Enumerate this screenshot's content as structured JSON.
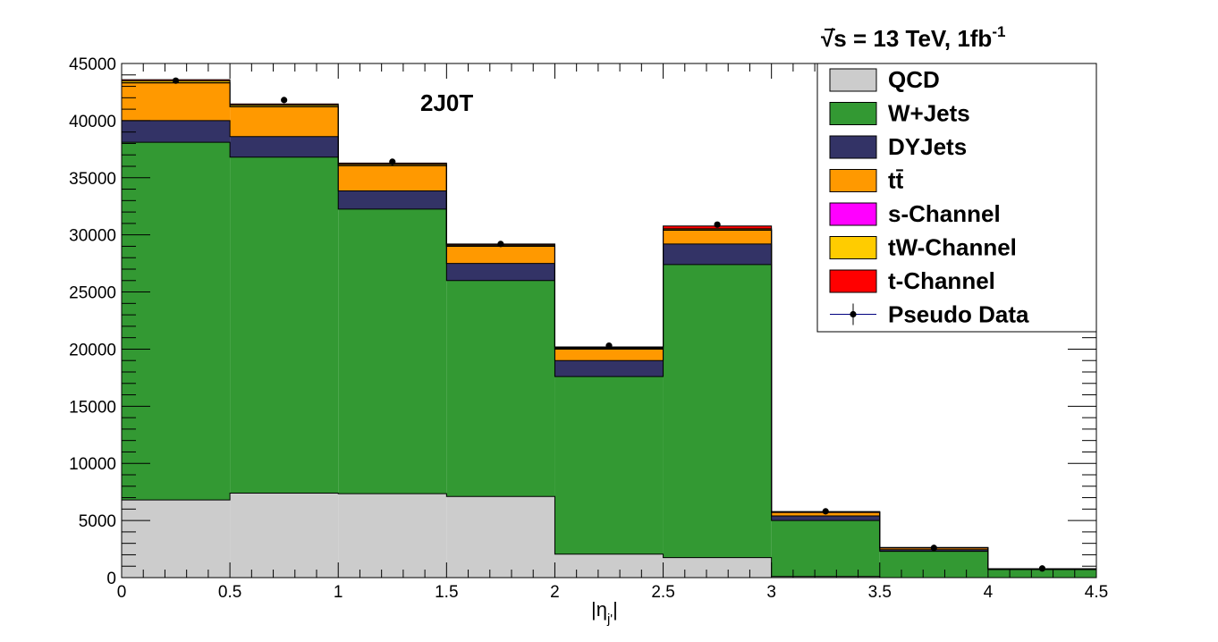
{
  "chart_data": {
    "type": "bar",
    "stacked": true,
    "header": {
      "energy": "√s = 13 TeV, 1fb",
      "lumi_exp": "-1"
    },
    "category": "2J0T",
    "xlabel": "|η",
    "xlabel_sub": "j'",
    "xlabel_close": "|",
    "xlim": [
      0,
      4.5
    ],
    "ylim": [
      0,
      45000
    ],
    "x_ticks": [
      "0",
      "0.5",
      "1",
      "1.5",
      "2",
      "2.5",
      "3",
      "3.5",
      "4",
      "4.5"
    ],
    "y_ticks": [
      "0",
      "5000",
      "10000",
      "15000",
      "20000",
      "25000",
      "30000",
      "35000",
      "40000",
      "45000"
    ],
    "bin_edges": [
      0,
      0.5,
      1,
      1.5,
      2,
      2.5,
      3,
      3.5,
      4,
      4.5
    ],
    "series": [
      {
        "name": "QCD",
        "color": "#cccccc",
        "values": [
          6800,
          7400,
          7350,
          7100,
          2050,
          1750,
          100,
          0,
          0
        ]
      },
      {
        "name": "W+Jets",
        "color": "#339933",
        "values": [
          31300,
          29400,
          24900,
          18900,
          15550,
          25650,
          4900,
          2300,
          700
        ]
      },
      {
        "name": "DYJets",
        "color": "#333366",
        "values": [
          1900,
          1800,
          1600,
          1500,
          1400,
          1800,
          400,
          150,
          30
        ]
      },
      {
        "name": "tt̄",
        "color": "#ff9900",
        "values": [
          3300,
          2600,
          2200,
          1500,
          1000,
          1200,
          300,
          150,
          40
        ]
      },
      {
        "name": "s-Channel",
        "color": "#ff00ff",
        "values": [
          30,
          30,
          30,
          30,
          30,
          30,
          10,
          5,
          2
        ]
      },
      {
        "name": "tW-Channel",
        "color": "#ffcc00",
        "values": [
          150,
          130,
          110,
          90,
          80,
          100,
          30,
          15,
          5
        ]
      },
      {
        "name": "t-Channel",
        "color": "#ff0000",
        "values": [
          100,
          100,
          90,
          80,
          80,
          250,
          40,
          20,
          8
        ]
      }
    ],
    "pseudo_data": {
      "name": "Pseudo Data",
      "x": [
        0.25,
        0.75,
        1.25,
        1.75,
        2.25,
        2.75,
        3.25,
        3.75,
        4.25
      ],
      "y": [
        43500,
        41800,
        36400,
        29200,
        20300,
        30900,
        5800,
        2600,
        800
      ]
    },
    "legend_position": "top-right",
    "grid": false
  }
}
